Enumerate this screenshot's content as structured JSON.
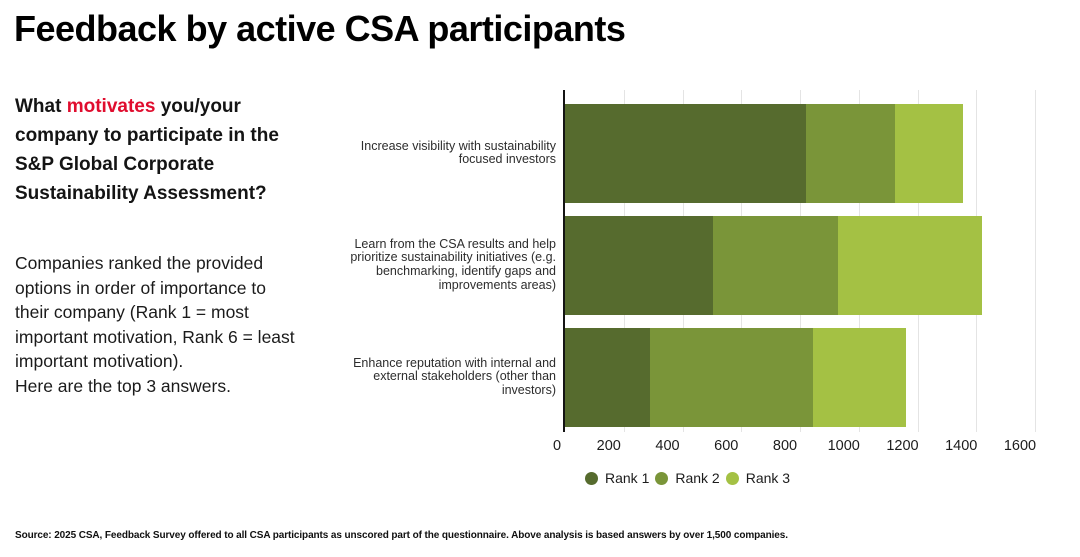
{
  "title": "Feedback by active CSA participants",
  "intro": {
    "prefix": "What ",
    "highlight": "motivates",
    "suffix": " you/your company to participate in the S&P Global Corporate Sustainability Assessment?"
  },
  "description": "Companies ranked the provided options in order of importance to their company (Rank 1 = most important motivation, Rank 6 = least important motivation).\nHere are the top 3 answers.",
  "footer": "Source: 2025 CSA, Feedback Survey offered to all CSA participants as unscored part of the questionnaire. Above analysis is based answers by over 1,500 companies.",
  "colors": {
    "rank1": "#566b2e",
    "rank2": "#7a9539",
    "rank3": "#a4c144",
    "highlight_red": "#e00d2e",
    "gridline": "#e4e4e4",
    "axis": "#141414"
  },
  "chart_data": {
    "type": "bar",
    "orientation": "horizontal",
    "stacked": true,
    "title": "",
    "xlabel": "",
    "ylabel": "",
    "categories": [
      "Increase visibility with sustainability\nfocused investors",
      "Learn from the CSA results and help\nprioritize sustainability initiatives (e.g.\nbenchmarking, identify gaps and\nimprovements areas)",
      "Enhance reputation with internal and\nexternal stakeholders (other than\ninvestors)"
    ],
    "series": [
      {
        "name": "Rank 1",
        "color": "#566b2e",
        "values": [
          820,
          505,
          290
        ]
      },
      {
        "name": "Rank 2",
        "color": "#7a9539",
        "values": [
          305,
          425,
          555
        ]
      },
      {
        "name": "Rank 3",
        "color": "#a4c144",
        "values": [
          230,
          490,
          315
        ]
      }
    ],
    "totals": [
      1355,
      1420,
      1160
    ],
    "xlim": [
      0,
      1600
    ],
    "xticks": [
      0,
      200,
      400,
      600,
      800,
      1000,
      1200,
      1400,
      1600
    ],
    "grid": true,
    "legend_position": "bottom"
  }
}
